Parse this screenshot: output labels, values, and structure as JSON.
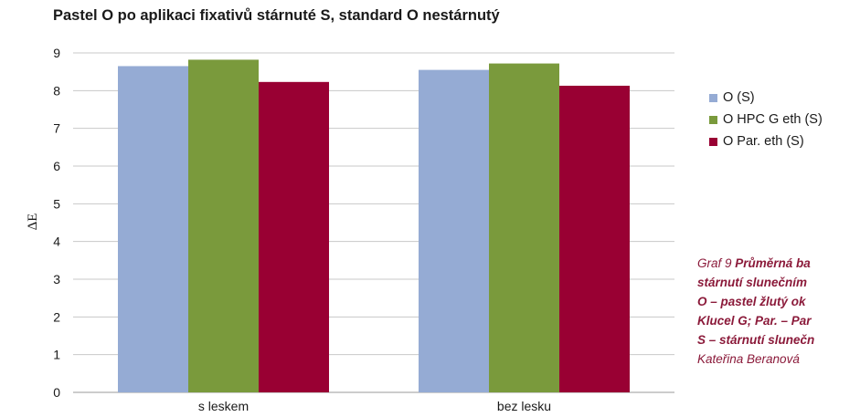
{
  "chart_data": {
    "type": "bar",
    "title": "Pastel O po aplikaci fixativů stárnuté S, standard O nestárnutý",
    "ylabel": "ΔE",
    "xlabel": "",
    "categories": [
      "s leskem",
      "bez lesku"
    ],
    "series": [
      {
        "name": "O (S)",
        "color": "#95abd4",
        "values": [
          8.65,
          8.55
        ]
      },
      {
        "name": "O HPC G eth (S)",
        "color": "#7a9a3c",
        "values": [
          8.82,
          8.72
        ]
      },
      {
        "name": "O Par. eth (S)",
        "color": "#990033",
        "values": [
          8.23,
          8.13
        ]
      }
    ],
    "ylim": [
      0,
      9
    ],
    "yticks": [
      "0",
      "1",
      "2",
      "3",
      "4",
      "5",
      "6",
      "7",
      "8",
      "9"
    ],
    "grid": true,
    "legend_position": "right"
  },
  "caption": {
    "prefix": "Graf 9 ",
    "lines": [
      "Průměrná ba",
      "stárnutí slunečním",
      "O – pastel žlutý ok",
      "Klucel G; Par. – Par",
      "S – stárnutí slunečn"
    ],
    "author": "Kateřina Beranová"
  }
}
